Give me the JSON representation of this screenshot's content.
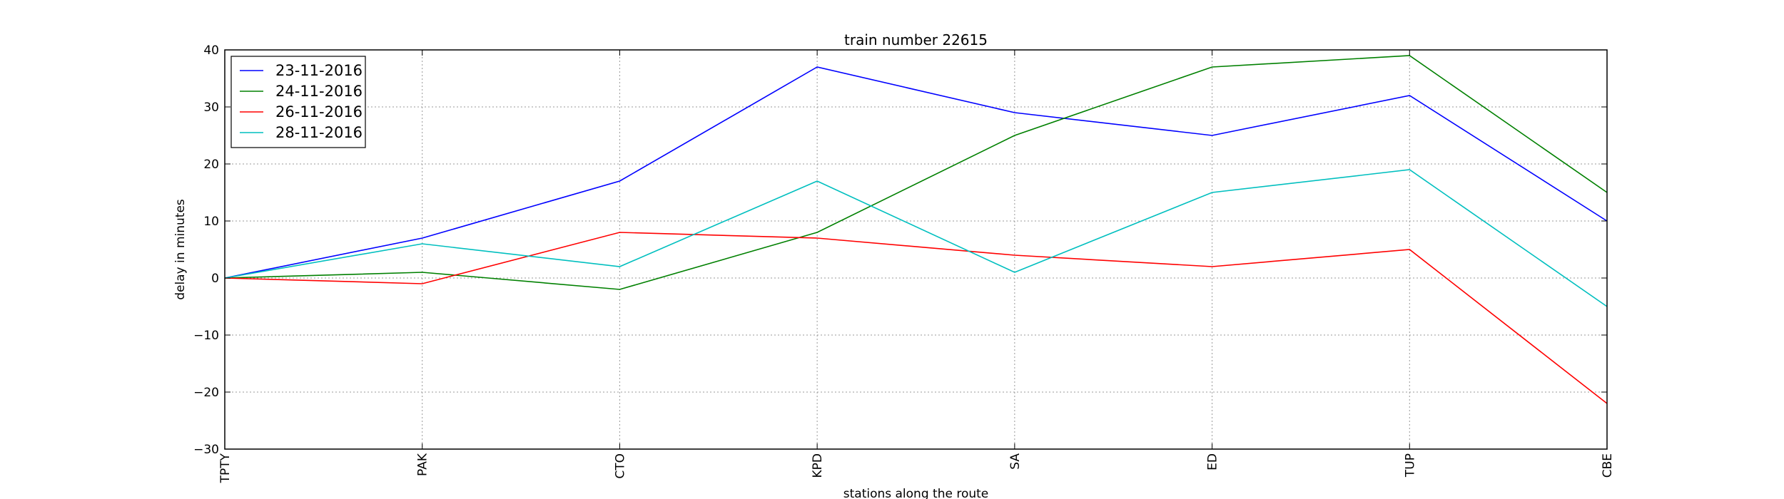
{
  "chart_data": {
    "type": "line",
    "title": "train number 22615",
    "xlabel": "stations along the route",
    "ylabel": "delay in minutes",
    "categories": [
      "TPTY",
      "PAK",
      "CTO",
      "KPD",
      "SA",
      "ED",
      "TUP",
      "CBE"
    ],
    "ylim": [
      -30,
      40
    ],
    "yticks": [
      -30,
      -20,
      -10,
      0,
      10,
      20,
      30,
      40
    ],
    "ytick_labels": [
      "−30",
      "−20",
      "−10",
      "0",
      "10",
      "20",
      "30",
      "40"
    ],
    "grid": true,
    "legend_position": "top-left",
    "series": [
      {
        "name": "23-11-2016",
        "color": "#0000ff",
        "values": [
          0,
          7,
          17,
          37,
          29,
          25,
          32,
          10
        ]
      },
      {
        "name": "24-11-2016",
        "color": "#008000",
        "values": [
          0,
          1,
          -2,
          8,
          25,
          37,
          39,
          15
        ]
      },
      {
        "name": "26-11-2016",
        "color": "#ff0000",
        "values": [
          0,
          -1,
          8,
          7,
          4,
          2,
          5,
          -22
        ]
      },
      {
        "name": "28-11-2016",
        "color": "#00bfbf",
        "values": [
          0,
          6,
          2,
          17,
          1,
          15,
          19,
          -5
        ]
      }
    ]
  }
}
